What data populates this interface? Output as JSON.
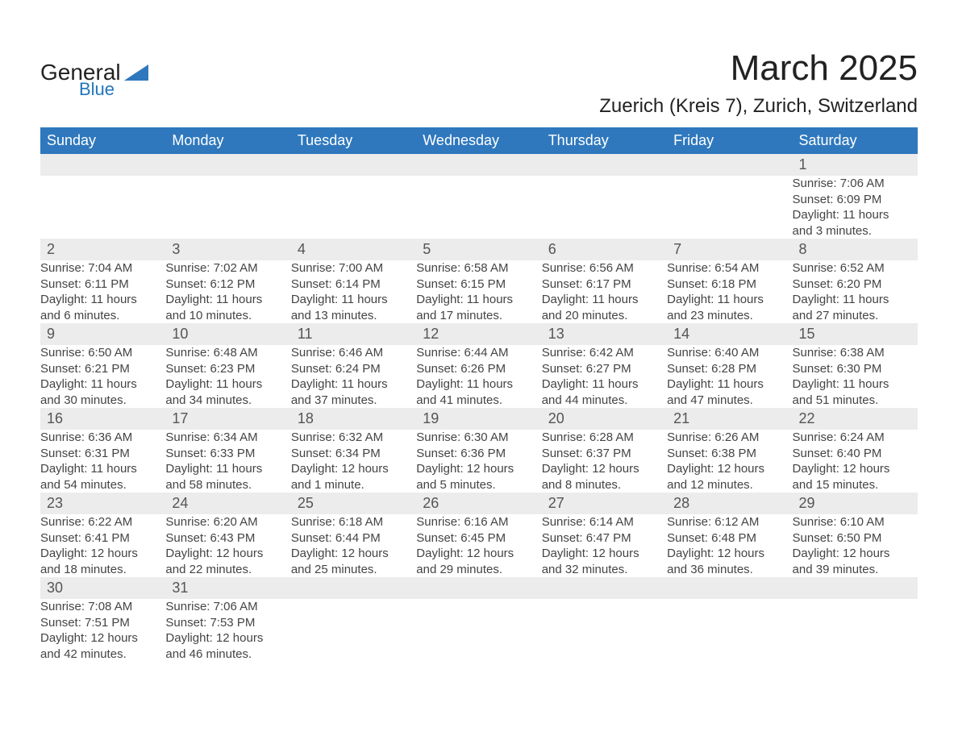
{
  "logo": {
    "line1": "General",
    "line2": "Blue",
    "shape_color": "#2f78bd",
    "text_color_1": "#222222",
    "text_color_2": "#2176bb"
  },
  "title": {
    "month": "March 2025",
    "location": "Zuerich (Kreis 7), Zurich, Switzerland"
  },
  "colors": {
    "header_bg": "#2f78bd",
    "header_fg": "#ffffff",
    "daynum_bg": "#ececec",
    "daynum_fg": "#555555",
    "row_divider": "#2f78bd",
    "body_text": "#444444",
    "page_bg": "#ffffff"
  },
  "fonts": {
    "family": "Arial, Helvetica, sans-serif",
    "month_title_pt": 44,
    "location_pt": 24,
    "weekday_pt": 18,
    "daynum_pt": 18,
    "body_pt": 15
  },
  "weekdays": [
    "Sunday",
    "Monday",
    "Tuesday",
    "Wednesday",
    "Thursday",
    "Friday",
    "Saturday"
  ],
  "weeks": [
    [
      null,
      null,
      null,
      null,
      null,
      null,
      {
        "n": "1",
        "sunrise": "Sunrise: 7:06 AM",
        "sunset": "Sunset: 6:09 PM",
        "daylight1": "Daylight: 11 hours",
        "daylight2": "and 3 minutes."
      }
    ],
    [
      {
        "n": "2",
        "sunrise": "Sunrise: 7:04 AM",
        "sunset": "Sunset: 6:11 PM",
        "daylight1": "Daylight: 11 hours",
        "daylight2": "and 6 minutes."
      },
      {
        "n": "3",
        "sunrise": "Sunrise: 7:02 AM",
        "sunset": "Sunset: 6:12 PM",
        "daylight1": "Daylight: 11 hours",
        "daylight2": "and 10 minutes."
      },
      {
        "n": "4",
        "sunrise": "Sunrise: 7:00 AM",
        "sunset": "Sunset: 6:14 PM",
        "daylight1": "Daylight: 11 hours",
        "daylight2": "and 13 minutes."
      },
      {
        "n": "5",
        "sunrise": "Sunrise: 6:58 AM",
        "sunset": "Sunset: 6:15 PM",
        "daylight1": "Daylight: 11 hours",
        "daylight2": "and 17 minutes."
      },
      {
        "n": "6",
        "sunrise": "Sunrise: 6:56 AM",
        "sunset": "Sunset: 6:17 PM",
        "daylight1": "Daylight: 11 hours",
        "daylight2": "and 20 minutes."
      },
      {
        "n": "7",
        "sunrise": "Sunrise: 6:54 AM",
        "sunset": "Sunset: 6:18 PM",
        "daylight1": "Daylight: 11 hours",
        "daylight2": "and 23 minutes."
      },
      {
        "n": "8",
        "sunrise": "Sunrise: 6:52 AM",
        "sunset": "Sunset: 6:20 PM",
        "daylight1": "Daylight: 11 hours",
        "daylight2": "and 27 minutes."
      }
    ],
    [
      {
        "n": "9",
        "sunrise": "Sunrise: 6:50 AM",
        "sunset": "Sunset: 6:21 PM",
        "daylight1": "Daylight: 11 hours",
        "daylight2": "and 30 minutes."
      },
      {
        "n": "10",
        "sunrise": "Sunrise: 6:48 AM",
        "sunset": "Sunset: 6:23 PM",
        "daylight1": "Daylight: 11 hours",
        "daylight2": "and 34 minutes."
      },
      {
        "n": "11",
        "sunrise": "Sunrise: 6:46 AM",
        "sunset": "Sunset: 6:24 PM",
        "daylight1": "Daylight: 11 hours",
        "daylight2": "and 37 minutes."
      },
      {
        "n": "12",
        "sunrise": "Sunrise: 6:44 AM",
        "sunset": "Sunset: 6:26 PM",
        "daylight1": "Daylight: 11 hours",
        "daylight2": "and 41 minutes."
      },
      {
        "n": "13",
        "sunrise": "Sunrise: 6:42 AM",
        "sunset": "Sunset: 6:27 PM",
        "daylight1": "Daylight: 11 hours",
        "daylight2": "and 44 minutes."
      },
      {
        "n": "14",
        "sunrise": "Sunrise: 6:40 AM",
        "sunset": "Sunset: 6:28 PM",
        "daylight1": "Daylight: 11 hours",
        "daylight2": "and 47 minutes."
      },
      {
        "n": "15",
        "sunrise": "Sunrise: 6:38 AM",
        "sunset": "Sunset: 6:30 PM",
        "daylight1": "Daylight: 11 hours",
        "daylight2": "and 51 minutes."
      }
    ],
    [
      {
        "n": "16",
        "sunrise": "Sunrise: 6:36 AM",
        "sunset": "Sunset: 6:31 PM",
        "daylight1": "Daylight: 11 hours",
        "daylight2": "and 54 minutes."
      },
      {
        "n": "17",
        "sunrise": "Sunrise: 6:34 AM",
        "sunset": "Sunset: 6:33 PM",
        "daylight1": "Daylight: 11 hours",
        "daylight2": "and 58 minutes."
      },
      {
        "n": "18",
        "sunrise": "Sunrise: 6:32 AM",
        "sunset": "Sunset: 6:34 PM",
        "daylight1": "Daylight: 12 hours",
        "daylight2": "and 1 minute."
      },
      {
        "n": "19",
        "sunrise": "Sunrise: 6:30 AM",
        "sunset": "Sunset: 6:36 PM",
        "daylight1": "Daylight: 12 hours",
        "daylight2": "and 5 minutes."
      },
      {
        "n": "20",
        "sunrise": "Sunrise: 6:28 AM",
        "sunset": "Sunset: 6:37 PM",
        "daylight1": "Daylight: 12 hours",
        "daylight2": "and 8 minutes."
      },
      {
        "n": "21",
        "sunrise": "Sunrise: 6:26 AM",
        "sunset": "Sunset: 6:38 PM",
        "daylight1": "Daylight: 12 hours",
        "daylight2": "and 12 minutes."
      },
      {
        "n": "22",
        "sunrise": "Sunrise: 6:24 AM",
        "sunset": "Sunset: 6:40 PM",
        "daylight1": "Daylight: 12 hours",
        "daylight2": "and 15 minutes."
      }
    ],
    [
      {
        "n": "23",
        "sunrise": "Sunrise: 6:22 AM",
        "sunset": "Sunset: 6:41 PM",
        "daylight1": "Daylight: 12 hours",
        "daylight2": "and 18 minutes."
      },
      {
        "n": "24",
        "sunrise": "Sunrise: 6:20 AM",
        "sunset": "Sunset: 6:43 PM",
        "daylight1": "Daylight: 12 hours",
        "daylight2": "and 22 minutes."
      },
      {
        "n": "25",
        "sunrise": "Sunrise: 6:18 AM",
        "sunset": "Sunset: 6:44 PM",
        "daylight1": "Daylight: 12 hours",
        "daylight2": "and 25 minutes."
      },
      {
        "n": "26",
        "sunrise": "Sunrise: 6:16 AM",
        "sunset": "Sunset: 6:45 PM",
        "daylight1": "Daylight: 12 hours",
        "daylight2": "and 29 minutes."
      },
      {
        "n": "27",
        "sunrise": "Sunrise: 6:14 AM",
        "sunset": "Sunset: 6:47 PM",
        "daylight1": "Daylight: 12 hours",
        "daylight2": "and 32 minutes."
      },
      {
        "n": "28",
        "sunrise": "Sunrise: 6:12 AM",
        "sunset": "Sunset: 6:48 PM",
        "daylight1": "Daylight: 12 hours",
        "daylight2": "and 36 minutes."
      },
      {
        "n": "29",
        "sunrise": "Sunrise: 6:10 AM",
        "sunset": "Sunset: 6:50 PM",
        "daylight1": "Daylight: 12 hours",
        "daylight2": "and 39 minutes."
      }
    ],
    [
      {
        "n": "30",
        "sunrise": "Sunrise: 7:08 AM",
        "sunset": "Sunset: 7:51 PM",
        "daylight1": "Daylight: 12 hours",
        "daylight2": "and 42 minutes."
      },
      {
        "n": "31",
        "sunrise": "Sunrise: 7:06 AM",
        "sunset": "Sunset: 7:53 PM",
        "daylight1": "Daylight: 12 hours",
        "daylight2": "and 46 minutes."
      },
      null,
      null,
      null,
      null,
      null
    ]
  ]
}
